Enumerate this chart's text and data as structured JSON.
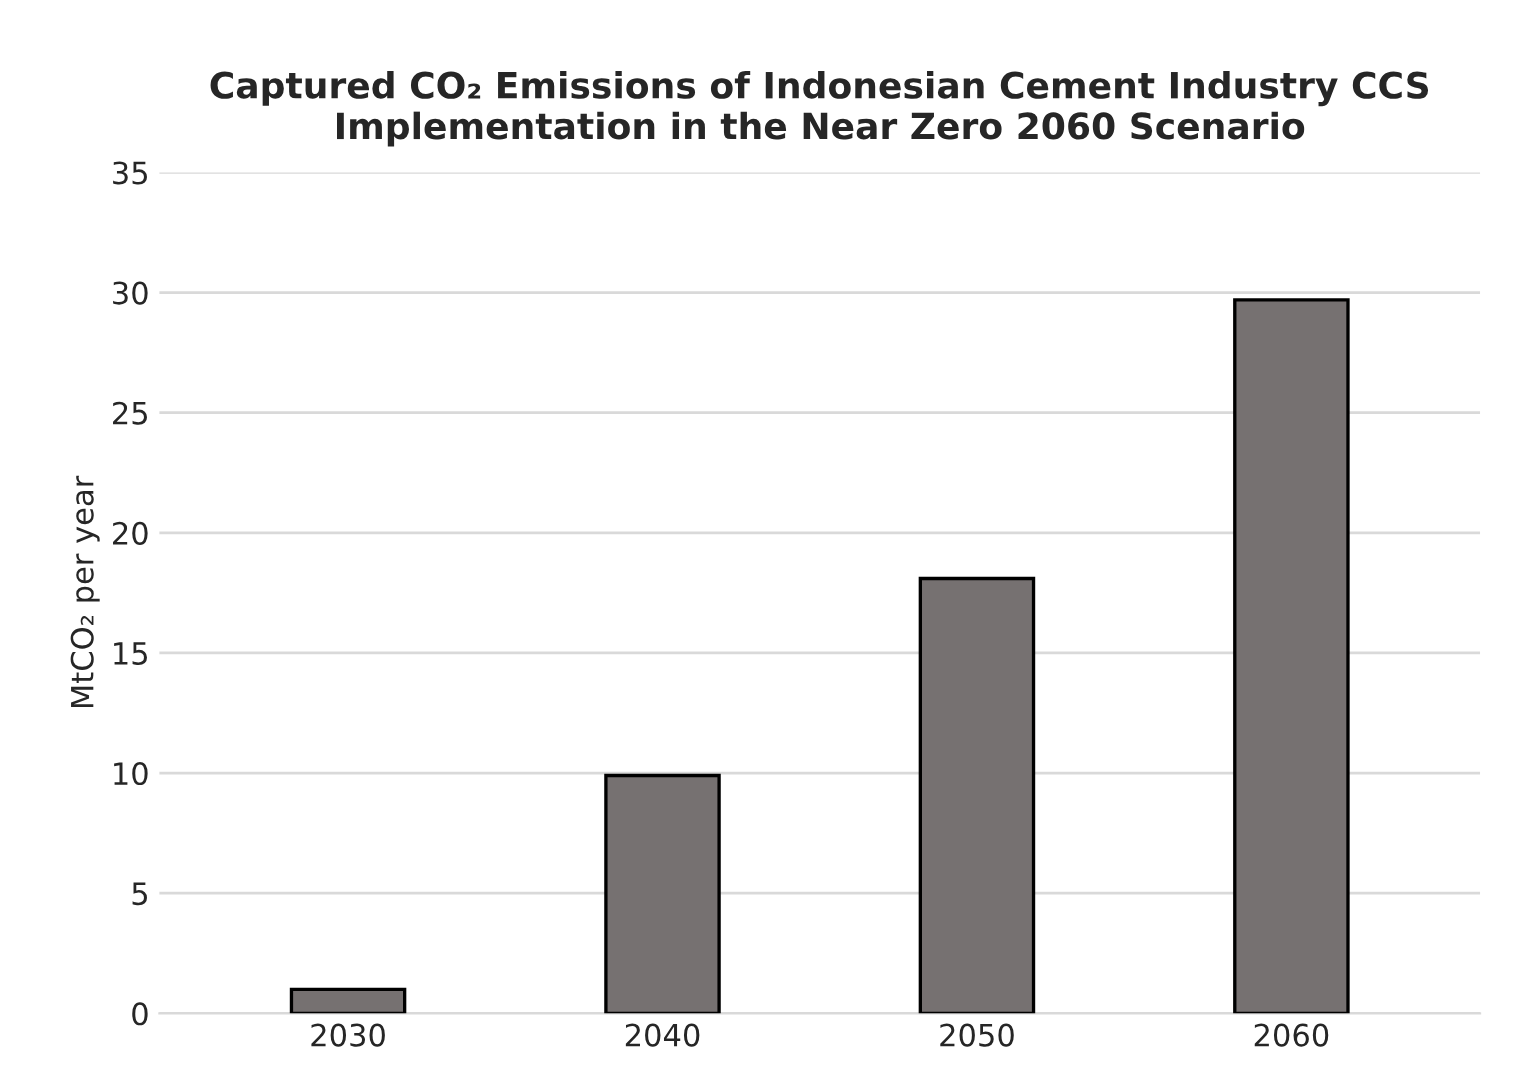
{
  "chart_data": {
    "type": "bar",
    "title": "Captured CO₂ Emissions of Indonesian Cement Industry CCS Implementation in the Near Zero 2060 Scenario",
    "ylabel": "MtCO₂ per year",
    "categories": [
      "2030",
      "2040",
      "2050",
      "2060"
    ],
    "values": [
      1.0,
      9.9,
      18.1,
      29.7
    ],
    "color": "#767171",
    "ylim": [
      0,
      35
    ],
    "yticks": [
      0,
      5,
      10,
      15,
      20,
      25,
      30,
      35
    ],
    "grid": "y"
  }
}
